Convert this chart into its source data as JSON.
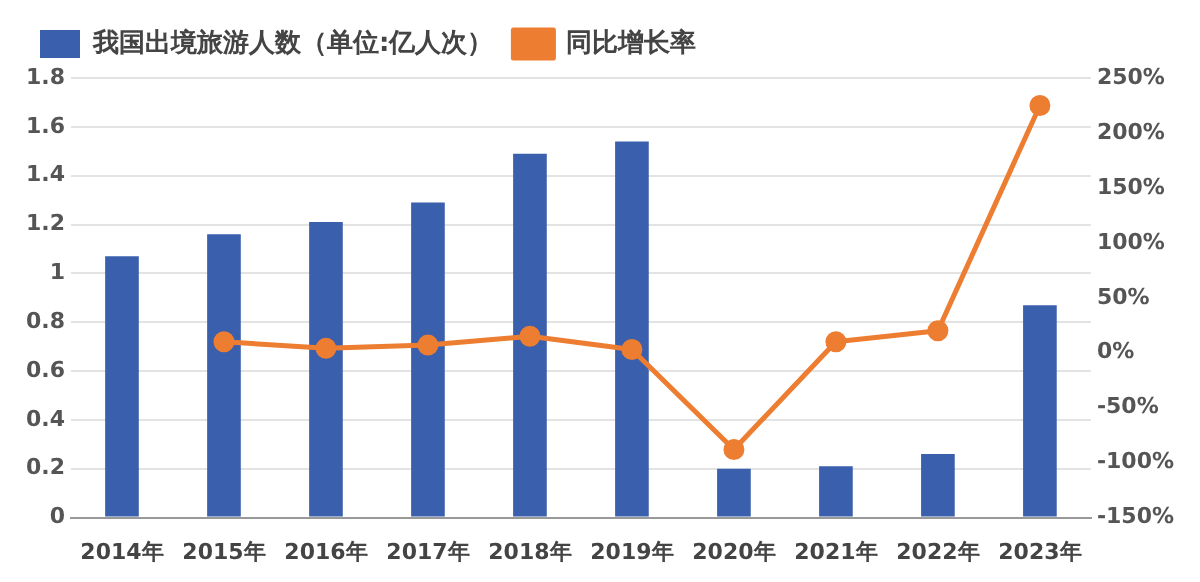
{
  "chart_data": {
    "type": "bar",
    "categories": [
      "2014年",
      "2015年",
      "2016年",
      "2017年",
      "2018年",
      "2019年",
      "2020年",
      "2021年",
      "2022年",
      "2023年"
    ],
    "series": [
      {
        "name": "我国出境旅游人数（单位:亿人次）",
        "color": "#3a5fad",
        "values": [
          1.07,
          1.16,
          1.21,
          1.29,
          1.49,
          1.54,
          0.2,
          0.21,
          0.26,
          0.87
        ]
      },
      {
        "name": "同比增长率",
        "type": "line",
        "axis": "y2",
        "color": "#ed7d31",
        "marker": "circle",
        "values": [
          null,
          10,
          4,
          7,
          15,
          3,
          -88,
          10,
          20,
          225
        ]
      }
    ],
    "ylim": [
      0,
      1.8
    ],
    "yticks": [
      0,
      0.2,
      0.4,
      0.6,
      0.8,
      1,
      1.2,
      1.4,
      1.6,
      1.8
    ],
    "y2lim": [
      -150,
      250
    ],
    "y2ticks": [
      {
        "value": -150,
        "label": "-150%"
      },
      {
        "value": -100,
        "label": "-100%"
      },
      {
        "value": -50,
        "label": "-50%"
      },
      {
        "value": 0,
        "label": "0%"
      },
      {
        "value": 50,
        "label": "50%"
      },
      {
        "value": 100,
        "label": "100%"
      },
      {
        "value": 150,
        "label": "150%"
      },
      {
        "value": 200,
        "label": "200%"
      },
      {
        "value": 250,
        "label": "250%"
      }
    ],
    "grid": "y",
    "legend": "top left"
  }
}
